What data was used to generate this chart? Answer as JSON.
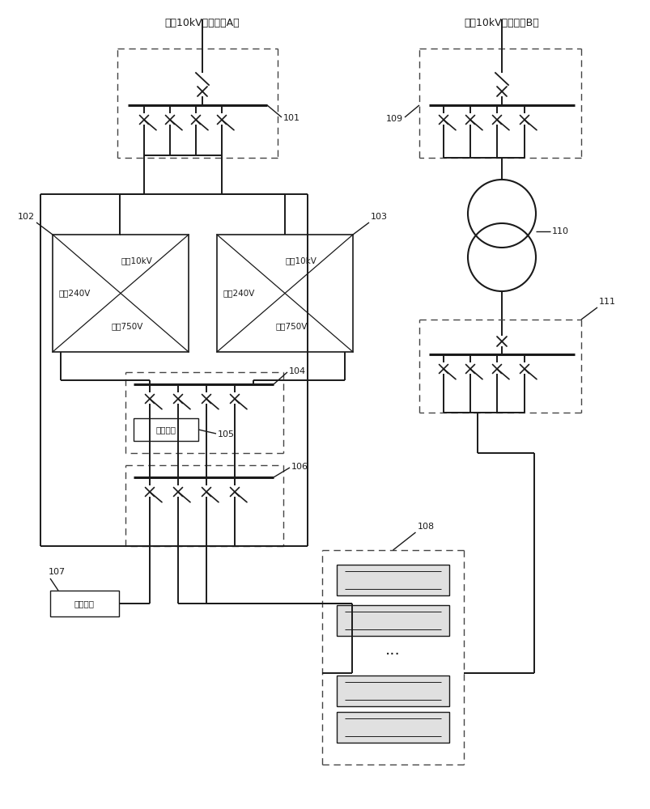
{
  "title_a": "交流10kV市电进线A路",
  "title_b": "交流10kV市电进线B路",
  "label_101": "101",
  "label_102": "102",
  "label_103": "103",
  "label_104": "104",
  "label_105": "105",
  "label_106": "106",
  "label_107": "107",
  "label_108": "108",
  "label_109": "109",
  "label_110": "110",
  "label_111": "111",
  "conv_text": [
    "交流10kV",
    "直流240V",
    "直流750V"
  ],
  "pv_label": "光伏发电",
  "battery_label": "蓄电池组",
  "bg_color": "#ffffff",
  "line_color": "#1a1a1a"
}
